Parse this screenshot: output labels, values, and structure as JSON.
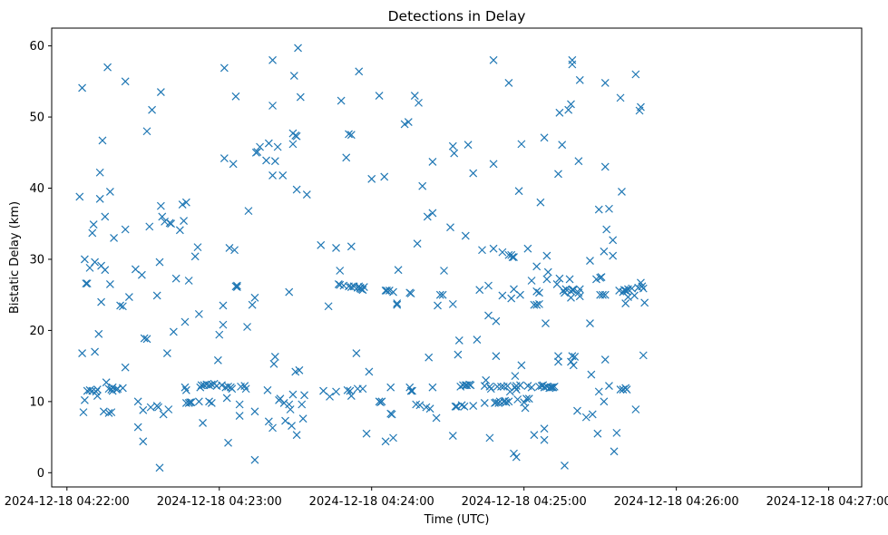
{
  "chart_data": {
    "type": "scatter",
    "title": "Detections in Delay",
    "xlabel": "Time (UTC)",
    "ylabel": "Bistatic Delay (km)",
    "marker": "x",
    "color": "#1f77b4",
    "x_unit": "seconds after 2024-12-18 04:22:00",
    "xlim": [
      -6,
      313
    ],
    "ylim": [
      -2,
      62.5
    ],
    "xticks": [
      {
        "value": 0,
        "label": "2024-12-18 04:22:00"
      },
      {
        "value": 60,
        "label": "2024-12-18 04:23:00"
      },
      {
        "value": 120,
        "label": "2024-12-18 04:24:00"
      },
      {
        "value": 180,
        "label": "2024-12-18 04:25:00"
      },
      {
        "value": 240,
        "label": "2024-12-18 04:26:00"
      },
      {
        "value": 300,
        "label": "2024-12-18 04:27:00"
      }
    ],
    "yticks": [
      0,
      10,
      20,
      30,
      40,
      50,
      60
    ],
    "points": [
      [
        5,
        38.8
      ],
      [
        6,
        54.1
      ],
      [
        6,
        16.8
      ],
      [
        6.5,
        8.5
      ],
      [
        7,
        10.2
      ],
      [
        7,
        30
      ],
      [
        7.5,
        26.6
      ],
      [
        8,
        26.6
      ],
      [
        8,
        11.5
      ],
      [
        9,
        28.8
      ],
      [
        9,
        11.6
      ],
      [
        10,
        33.7
      ],
      [
        10,
        11.5
      ],
      [
        10.5,
        34.9
      ],
      [
        11,
        17
      ],
      [
        11,
        29.6
      ],
      [
        11.5,
        11.4
      ],
      [
        12,
        11.7
      ],
      [
        12,
        10.8
      ],
      [
        12.5,
        19.5
      ],
      [
        13,
        38.5
      ],
      [
        13,
        42.2
      ],
      [
        13.5,
        24
      ],
      [
        13.5,
        29.1
      ],
      [
        14,
        46.7
      ],
      [
        14.5,
        8.6
      ],
      [
        15,
        36
      ],
      [
        15,
        28.5
      ],
      [
        15.5,
        12.7
      ],
      [
        16,
        57
      ],
      [
        16.5,
        8.4
      ],
      [
        16.5,
        11.8
      ],
      [
        17,
        39.5
      ],
      [
        17,
        26.5
      ],
      [
        17.5,
        8.5
      ],
      [
        17.5,
        11.7
      ],
      [
        18,
        12
      ],
      [
        18,
        11.5
      ],
      [
        18.5,
        33
      ],
      [
        19.5,
        11.7
      ],
      [
        20,
        11.8
      ],
      [
        21,
        23.5
      ],
      [
        22,
        23.4
      ],
      [
        22,
        11.9
      ],
      [
        23,
        55
      ],
      [
        23,
        34.2
      ],
      [
        23,
        14.8
      ],
      [
        24.5,
        24.7
      ],
      [
        27,
        28.6
      ],
      [
        28,
        10
      ],
      [
        28,
        6.4
      ],
      [
        29.5,
        27.8
      ],
      [
        30,
        4.4
      ],
      [
        30,
        8.8
      ],
      [
        30.5,
        18.9
      ],
      [
        31.5,
        48
      ],
      [
        31.5,
        18.8
      ],
      [
        32.5,
        34.6
      ],
      [
        33,
        9.2
      ],
      [
        33.5,
        51
      ],
      [
        35.5,
        24.9
      ],
      [
        35.5,
        9.4
      ],
      [
        36,
        9.2
      ],
      [
        36.5,
        29.6
      ],
      [
        36.5,
        0.7
      ],
      [
        37,
        37.5
      ],
      [
        37,
        53.5
      ],
      [
        37.5,
        36
      ],
      [
        38,
        8.2
      ],
      [
        38.5,
        35.3
      ],
      [
        39.5,
        16.8
      ],
      [
        40,
        8.9
      ],
      [
        40.5,
        35.1
      ],
      [
        41,
        35
      ],
      [
        42,
        19.8
      ],
      [
        43,
        27.3
      ],
      [
        44.5,
        34.1
      ],
      [
        45.5,
        37.7
      ],
      [
        46,
        35.4
      ],
      [
        46.5,
        21.2
      ],
      [
        46.5,
        12
      ],
      [
        47,
        9.8
      ],
      [
        47,
        11.6
      ],
      [
        47,
        38
      ],
      [
        48,
        9.8
      ],
      [
        48,
        27
      ],
      [
        48.5,
        9.9
      ],
      [
        49,
        9.9
      ],
      [
        50.5,
        30.4
      ],
      [
        51.5,
        31.7
      ],
      [
        52,
        10
      ],
      [
        52,
        22.3
      ],
      [
        52.5,
        12
      ],
      [
        53,
        12.3
      ],
      [
        53.5,
        7
      ],
      [
        54,
        12.3
      ],
      [
        55,
        12.4
      ],
      [
        56,
        10
      ],
      [
        56,
        12.3
      ],
      [
        57,
        12.4
      ],
      [
        57,
        9.8
      ],
      [
        58,
        12.5
      ],
      [
        59,
        12.2
      ],
      [
        59.5,
        15.8
      ],
      [
        60,
        19.4
      ],
      [
        61,
        12.3
      ],
      [
        61.5,
        23.5
      ],
      [
        61.5,
        20.8
      ],
      [
        62,
        56.9
      ],
      [
        62,
        44.2
      ],
      [
        62.5,
        12
      ],
      [
        63,
        10.5
      ],
      [
        63.5,
        12.1
      ],
      [
        63.5,
        4.2
      ],
      [
        64,
        31.6
      ],
      [
        64.5,
        12
      ],
      [
        65,
        11.8
      ],
      [
        65.5,
        43.4
      ],
      [
        66,
        31.3
      ],
      [
        66.5,
        52.9
      ],
      [
        66.5,
        26.2
      ],
      [
        67,
        26.1
      ],
      [
        67,
        26.3
      ],
      [
        68,
        9.6
      ],
      [
        68,
        8
      ],
      [
        68.5,
        12.1
      ],
      [
        70,
        12.2
      ],
      [
        70.5,
        11.8
      ],
      [
        71,
        20.5
      ],
      [
        71.5,
        36.8
      ],
      [
        73,
        23.6
      ],
      [
        74,
        1.8
      ],
      [
        74,
        24.6
      ],
      [
        74,
        8.6
      ],
      [
        74.5,
        45
      ],
      [
        75,
        45.1
      ],
      [
        76,
        45.8
      ],
      [
        78.5,
        43.9
      ],
      [
        79,
        11.6
      ],
      [
        79.5,
        46.3
      ],
      [
        79.5,
        7.2
      ],
      [
        81,
        58
      ],
      [
        81,
        51.6
      ],
      [
        81,
        41.8
      ],
      [
        81,
        6.3
      ],
      [
        81.5,
        15.3
      ],
      [
        82,
        43.8
      ],
      [
        82,
        16.3
      ],
      [
        83,
        45.8
      ],
      [
        83.5,
        10.2
      ],
      [
        84,
        10.4
      ],
      [
        85,
        41.8
      ],
      [
        85.5,
        9.8
      ],
      [
        86,
        7.3
      ],
      [
        87.5,
        9.6
      ],
      [
        87.5,
        25.4
      ],
      [
        88,
        8.9
      ],
      [
        88.5,
        6.6
      ],
      [
        89,
        46.2
      ],
      [
        89,
        11
      ],
      [
        89,
        47.7
      ],
      [
        89.5,
        55.8
      ],
      [
        90,
        47.4
      ],
      [
        90,
        14.2
      ],
      [
        90.5,
        47.3
      ],
      [
        90.5,
        39.8
      ],
      [
        90.5,
        5.3
      ],
      [
        91,
        59.7
      ],
      [
        91.5,
        14.4
      ],
      [
        92,
        52.8
      ],
      [
        92.5,
        9.6
      ],
      [
        93,
        7.6
      ],
      [
        93.5,
        10.9
      ],
      [
        94.5,
        39.1
      ],
      [
        100,
        32
      ],
      [
        101,
        11.5
      ],
      [
        103,
        23.4
      ],
      [
        103.5,
        10.7
      ],
      [
        106,
        11.4
      ],
      [
        106,
        31.6
      ],
      [
        107,
        26.5
      ],
      [
        107.5,
        26.4
      ],
      [
        107.5,
        28.4
      ],
      [
        108,
        52.3
      ],
      [
        109,
        26.3
      ],
      [
        110,
        44.3
      ],
      [
        110.5,
        11.6
      ],
      [
        111,
        47.6
      ],
      [
        111,
        26.2
      ],
      [
        111.5,
        11.5
      ],
      [
        112,
        47.5
      ],
      [
        112,
        31.8
      ],
      [
        112,
        26.1
      ],
      [
        112,
        10.8
      ],
      [
        113,
        26.2
      ],
      [
        114,
        16.8
      ],
      [
        114.5,
        26
      ],
      [
        114.5,
        11.8
      ],
      [
        115,
        26.2
      ],
      [
        115,
        56.4
      ],
      [
        115.5,
        25.9
      ],
      [
        115.5,
        26
      ],
      [
        116,
        25.8
      ],
      [
        116.5,
        11.8
      ],
      [
        116.5,
        25.7
      ],
      [
        117,
        26.1
      ],
      [
        118,
        5.5
      ],
      [
        119,
        14.2
      ],
      [
        120,
        41.3
      ],
      [
        123,
        10
      ],
      [
        123,
        53
      ],
      [
        123.5,
        9.9
      ],
      [
        124,
        10
      ],
      [
        125,
        41.6
      ],
      [
        125.5,
        25.6
      ],
      [
        125.5,
        4.4
      ],
      [
        126,
        25.6
      ],
      [
        127,
        25.6
      ],
      [
        127.5,
        8.3
      ],
      [
        127.5,
        12
      ],
      [
        128,
        8.2
      ],
      [
        128.5,
        25.4
      ],
      [
        128.5,
        4.9
      ],
      [
        130,
        23.6
      ],
      [
        130,
        23.8
      ],
      [
        130.5,
        28.5
      ],
      [
        133,
        49
      ],
      [
        134.5,
        49.3
      ],
      [
        135,
        12
      ],
      [
        135,
        25.3
      ],
      [
        135.5,
        11.5
      ],
      [
        135.5,
        25.2
      ],
      [
        136,
        11.5
      ],
      [
        137,
        53
      ],
      [
        137.5,
        9.6
      ],
      [
        138,
        32.2
      ],
      [
        138.5,
        52
      ],
      [
        139,
        9.5
      ],
      [
        140,
        40.3
      ],
      [
        141.5,
        9.2
      ],
      [
        142,
        36
      ],
      [
        142.5,
        16.2
      ],
      [
        143,
        9
      ],
      [
        144,
        36.5
      ],
      [
        144,
        12
      ],
      [
        144,
        43.7
      ],
      [
        145.5,
        7.7
      ],
      [
        146,
        23.5
      ],
      [
        147,
        25
      ],
      [
        148,
        25
      ],
      [
        148.5,
        28.4
      ],
      [
        151,
        34.5
      ],
      [
        152,
        23.7
      ],
      [
        152,
        5.2
      ],
      [
        152,
        45.9
      ],
      [
        152.5,
        44.9
      ],
      [
        153,
        9.3
      ],
      [
        153.5,
        9.3
      ],
      [
        154,
        16.6
      ],
      [
        154.5,
        18.6
      ],
      [
        155,
        12.1
      ],
      [
        155.5,
        9.5
      ],
      [
        156,
        12.3
      ],
      [
        156.5,
        9.3
      ],
      [
        157,
        33.3
      ],
      [
        157,
        12.3
      ],
      [
        157.5,
        12.3
      ],
      [
        158,
        46.1
      ],
      [
        158.5,
        12.4
      ],
      [
        159,
        12.3
      ],
      [
        160,
        9.4
      ],
      [
        160,
        42.1
      ],
      [
        161.5,
        18.7
      ],
      [
        162.5,
        25.7
      ],
      [
        163.5,
        31.3
      ],
      [
        164.5,
        9.8
      ],
      [
        164.5,
        12.2
      ],
      [
        165,
        13
      ],
      [
        166,
        22.1
      ],
      [
        166,
        26.3
      ],
      [
        166.5,
        4.9
      ],
      [
        166.5,
        12.1
      ],
      [
        167,
        11.8
      ],
      [
        168,
        58
      ],
      [
        168,
        43.4
      ],
      [
        168,
        31.5
      ],
      [
        168.5,
        9.8
      ],
      [
        169,
        16.4
      ],
      [
        169,
        21.3
      ],
      [
        169,
        9.9
      ],
      [
        169.5,
        12.1
      ],
      [
        170,
        9.8
      ],
      [
        170.5,
        10
      ],
      [
        171,
        12.1
      ],
      [
        171.5,
        24.9
      ],
      [
        171.5,
        31
      ],
      [
        172,
        10
      ],
      [
        172,
        12.1
      ],
      [
        172.5,
        10.1
      ],
      [
        173,
        9.9
      ],
      [
        173.5,
        12.2
      ],
      [
        174,
        54.8
      ],
      [
        174,
        30.6
      ],
      [
        174,
        10
      ],
      [
        174.5,
        11.4
      ],
      [
        175,
        30.6
      ],
      [
        175,
        24.5
      ],
      [
        175.5,
        30.3
      ],
      [
        176,
        2.7
      ],
      [
        176,
        30.3
      ],
      [
        176,
        25.8
      ],
      [
        176.5,
        13.6
      ],
      [
        176.5,
        12
      ],
      [
        177,
        2.2
      ],
      [
        177,
        12.2
      ],
      [
        177,
        11.7
      ],
      [
        177.5,
        10.3
      ],
      [
        178,
        39.6
      ],
      [
        178.5,
        25
      ],
      [
        178.5,
        12.3
      ],
      [
        179,
        46.2
      ],
      [
        179,
        15.1
      ],
      [
        180,
        9.9
      ],
      [
        180.5,
        9.1
      ],
      [
        181,
        10.4
      ],
      [
        181.5,
        31.5
      ],
      [
        181.5,
        12.2
      ],
      [
        182,
        10.4
      ],
      [
        183,
        12
      ],
      [
        183,
        27
      ],
      [
        184,
        23.6
      ],
      [
        184,
        5.3
      ],
      [
        185,
        23.6
      ],
      [
        185,
        29
      ],
      [
        185,
        25.5
      ],
      [
        186,
        25.3
      ],
      [
        186,
        12.1
      ],
      [
        186,
        23.7
      ],
      [
        186.5,
        38
      ],
      [
        187,
        12.2
      ],
      [
        187.5,
        12.3
      ],
      [
        188,
        47.1
      ],
      [
        188,
        12
      ],
      [
        188,
        4.6
      ],
      [
        188,
        6.2
      ],
      [
        188.5,
        21
      ],
      [
        189,
        30.5
      ],
      [
        189,
        27.2
      ],
      [
        189,
        12.1
      ],
      [
        189.5,
        28.2
      ],
      [
        190,
        11.9
      ],
      [
        190.5,
        12
      ],
      [
        191,
        12
      ],
      [
        191.5,
        12
      ],
      [
        192,
        12.1
      ],
      [
        193,
        26.5
      ],
      [
        193.5,
        42
      ],
      [
        193.5,
        15.6
      ],
      [
        193.5,
        16.4
      ],
      [
        194,
        50.6
      ],
      [
        194,
        27.3
      ],
      [
        195,
        46.1
      ],
      [
        195.5,
        25.6
      ],
      [
        196,
        25.3
      ],
      [
        196,
        1
      ],
      [
        196.5,
        25.8
      ],
      [
        197.5,
        51
      ],
      [
        198,
        27.2
      ],
      [
        198.5,
        51.8
      ],
      [
        198.5,
        25.5
      ],
      [
        198.5,
        24.6
      ],
      [
        198.5,
        15.6
      ],
      [
        199,
        58
      ],
      [
        199,
        57.4
      ],
      [
        199,
        25.7
      ],
      [
        199,
        16.4
      ],
      [
        199.5,
        25.7
      ],
      [
        199.5,
        15.1
      ],
      [
        200,
        16.3
      ],
      [
        201,
        8.7
      ],
      [
        201.5,
        43.8
      ],
      [
        201.5,
        25.3
      ],
      [
        202,
        55.2
      ],
      [
        202,
        24.8
      ],
      [
        202,
        25.8
      ],
      [
        204.5,
        7.8
      ],
      [
        206,
        29.8
      ],
      [
        206,
        21
      ],
      [
        206.5,
        13.8
      ],
      [
        207,
        8.2
      ],
      [
        208.5,
        27.2
      ],
      [
        209,
        5.5
      ],
      [
        209.5,
        37
      ],
      [
        209.5,
        11.4
      ],
      [
        210,
        25
      ],
      [
        210,
        27.4
      ],
      [
        210.5,
        27.5
      ],
      [
        211,
        25
      ],
      [
        211.5,
        10
      ],
      [
        211.5,
        31.1
      ],
      [
        212,
        54.8
      ],
      [
        212,
        43
      ],
      [
        212,
        25
      ],
      [
        212,
        15.9
      ],
      [
        212.5,
        34.2
      ],
      [
        213.5,
        37.1
      ],
      [
        213.5,
        12.2
      ],
      [
        215,
        30.5
      ],
      [
        215,
        32.7
      ],
      [
        215.5,
        3
      ],
      [
        216.5,
        5.6
      ],
      [
        217.5,
        25.6
      ],
      [
        218,
        52.7
      ],
      [
        218,
        11.7
      ],
      [
        218.5,
        39.5
      ],
      [
        219,
        11.7
      ],
      [
        219,
        25.4
      ],
      [
        219.5,
        25.7
      ],
      [
        220,
        23.8
      ],
      [
        220,
        25.6
      ],
      [
        220,
        11.9
      ],
      [
        220.5,
        25.5
      ],
      [
        220.5,
        11.7
      ],
      [
        221,
        24.7
      ],
      [
        221,
        25.8
      ],
      [
        222.5,
        25.9
      ],
      [
        223.5,
        24.9
      ],
      [
        224,
        56
      ],
      [
        224,
        8.9
      ],
      [
        225,
        26
      ],
      [
        225.5,
        50.9
      ],
      [
        226,
        51.4
      ],
      [
        226,
        26.7
      ],
      [
        226.5,
        26.2
      ],
      [
        227,
        16.5
      ],
      [
        227,
        25.9
      ],
      [
        227.5,
        23.9
      ]
    ]
  }
}
